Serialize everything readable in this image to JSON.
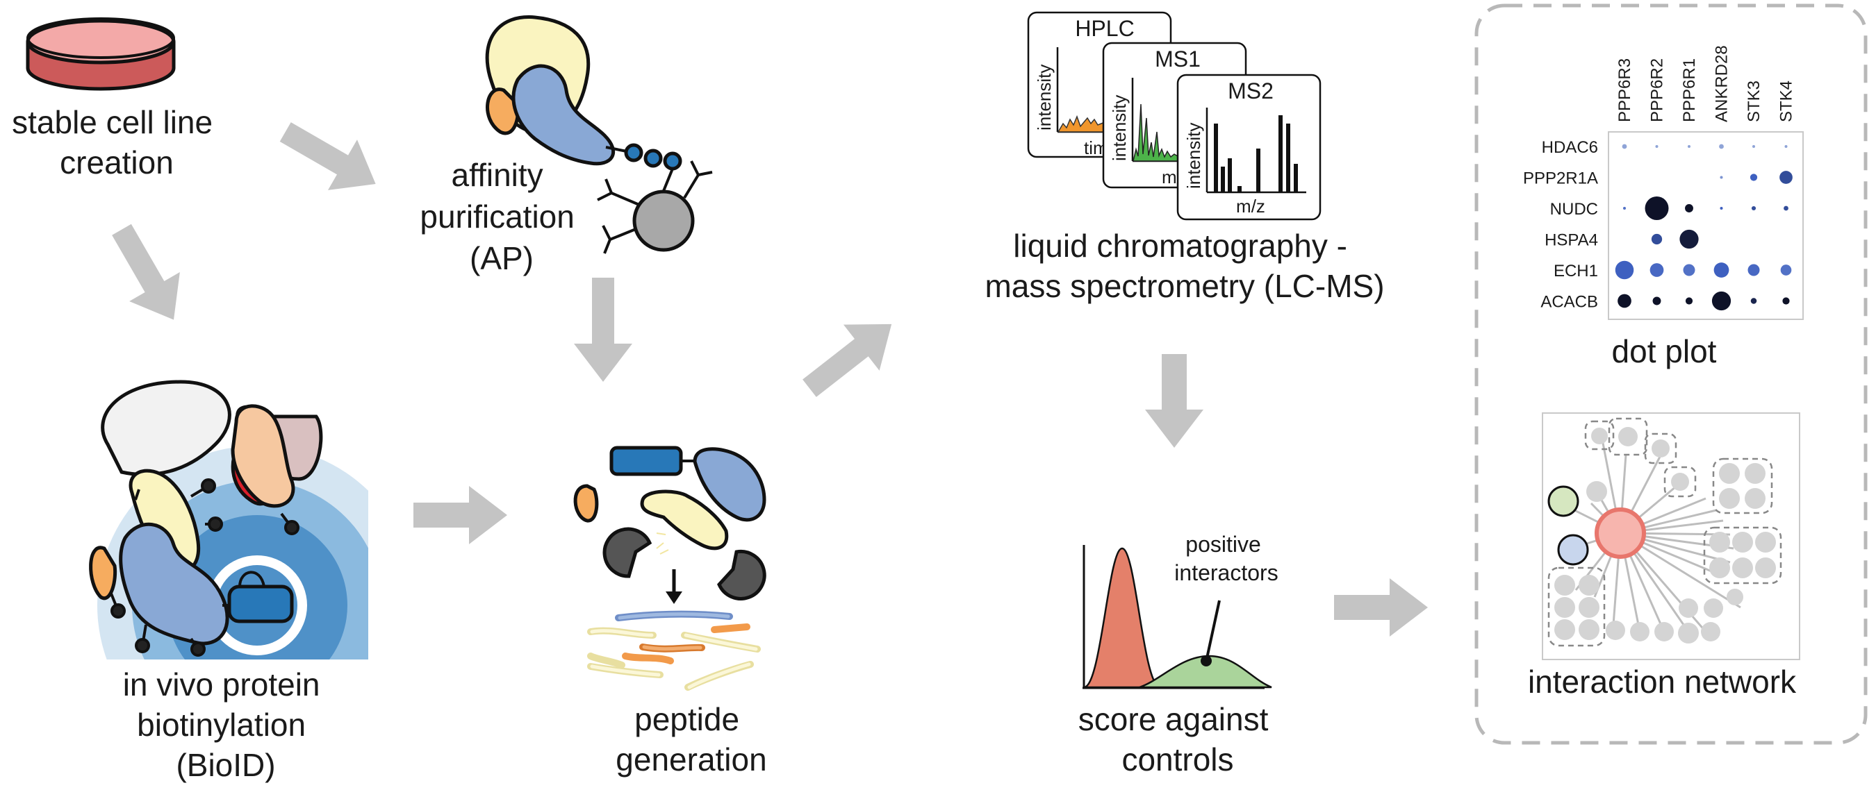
{
  "steps": {
    "cell_line": [
      "stable cell line",
      "creation"
    ],
    "ap": [
      "affinity",
      "purification",
      "(AP)"
    ],
    "bioid": [
      "in vivo protein",
      "biotinylation",
      "(BioID)"
    ],
    "peptide": [
      "peptide",
      "generation"
    ],
    "lcms": [
      "liquid chromatography -",
      "mass spectrometry (LC-MS)"
    ],
    "score": [
      "score against",
      "controls"
    ],
    "dotplot": "dot plot",
    "network": "interaction network"
  },
  "ms_panels": {
    "hplc": {
      "title": "HPLC",
      "ylabel": "intensity",
      "xlabel": "time"
    },
    "ms1": {
      "title": "MS1",
      "ylabel": "intensity",
      "xlabel": "m/z"
    },
    "ms2": {
      "title": "MS2",
      "ylabel": "intensity",
      "xlabel": "m/z"
    }
  },
  "score_annotation": [
    "positive",
    "interactors"
  ],
  "colors": {
    "arrow": "#c4c4c4",
    "dish": "#f3a9a8",
    "protein_blue": "#89a8d5",
    "protein_yellow": "#faf4c0",
    "protein_orange": "#f6ac5f",
    "protein_peach": "#f6c8a0",
    "protein_mauve": "#d9c0c0",
    "red": "#d9202a",
    "dark_blue": "#2878b8",
    "ring_light": "#d4e5f2",
    "ring_mid": "#8bbadf",
    "ring_dark": "#4f91c8",
    "hplc_fill": "#f0962d",
    "ms1_fill": "#4db34a",
    "peak_red": "#e4806a",
    "peak_green": "#aad49b",
    "hub": "#f7b5ae",
    "hub_stroke": "#e8766c",
    "node_green": "#d6e7c0",
    "node_blue": "#c8d6ed",
    "node_grey": "#d4d4d4"
  },
  "chart_data": {
    "type": "scatter",
    "title": "dot plot",
    "columns": [
      "PPP6R3",
      "PPP6R2",
      "PPP6R1",
      "ANKRD28",
      "STK3",
      "STK4"
    ],
    "rows": [
      "HDAC6",
      "PPP2R1A",
      "NUDC",
      "HSPA4",
      "ECH1",
      "ACACB"
    ],
    "size": [
      [
        0.2,
        0.06,
        0.06,
        0.2,
        0.06,
        0.06
      ],
      [
        0.0,
        0.0,
        0.0,
        0.06,
        0.3,
        0.55
      ],
      [
        0.06,
        1.0,
        0.35,
        0.1,
        0.18,
        0.2
      ],
      [
        0.0,
        0.45,
        0.8,
        0.0,
        0.0,
        0.0
      ],
      [
        0.78,
        0.58,
        0.5,
        0.64,
        0.5,
        0.46
      ],
      [
        0.58,
        0.35,
        0.3,
        0.8,
        0.25,
        0.3
      ]
    ],
    "intensity": [
      [
        0.2,
        0.2,
        0.2,
        0.2,
        0.2,
        0.2
      ],
      [
        0.0,
        0.0,
        0.0,
        0.3,
        0.6,
        0.7
      ],
      [
        0.5,
        1.0,
        1.0,
        0.6,
        0.7,
        0.7
      ],
      [
        0.0,
        0.7,
        0.95,
        0.0,
        0.0,
        0.0
      ],
      [
        0.6,
        0.55,
        0.5,
        0.6,
        0.55,
        0.5
      ],
      [
        1.0,
        1.0,
        1.0,
        1.0,
        0.9,
        1.0
      ]
    ]
  }
}
